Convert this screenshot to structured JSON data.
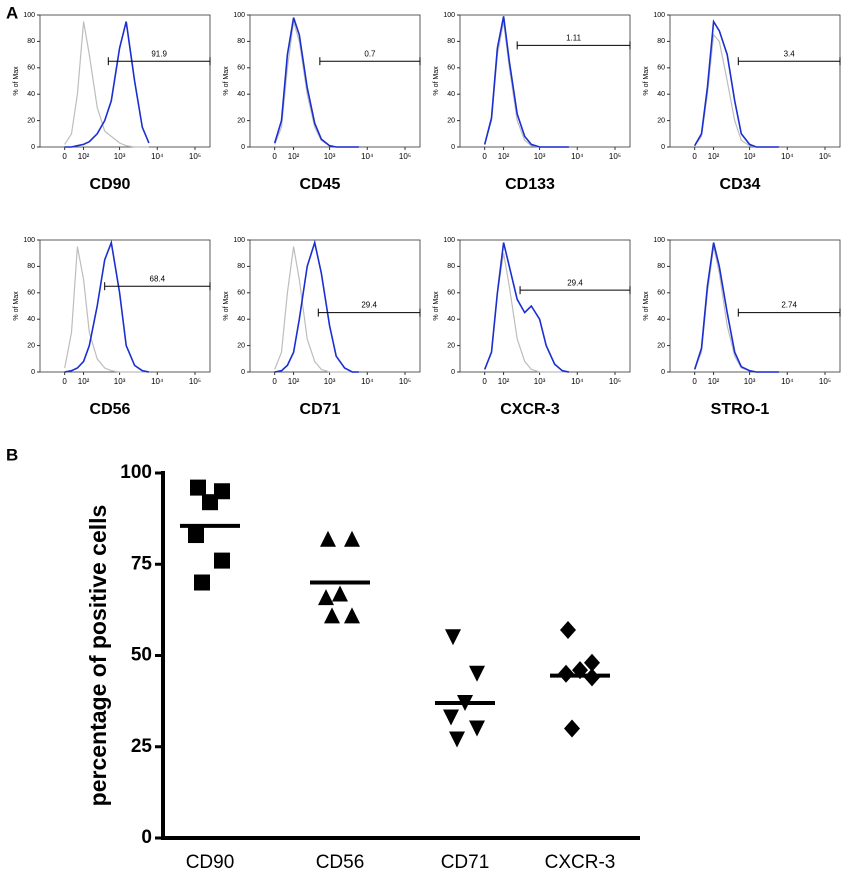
{
  "panels": [
    "A",
    "B"
  ],
  "chart_data": [
    {
      "type": "line",
      "title": "CD90",
      "ylabel": "% of Max",
      "xscale": "biexponential",
      "x": [
        0,
        30,
        60,
        100,
        150,
        250,
        400,
        600,
        1000,
        1500,
        2500,
        4000,
        6000
      ],
      "series": [
        {
          "color": "#bdbdbd",
          "values": [
            2,
            10,
            40,
            95,
            70,
            30,
            12,
            8,
            3,
            1,
            0,
            0,
            0
          ]
        },
        {
          "color": "#1a2fd0",
          "values": [
            0,
            0,
            1,
            2,
            4,
            10,
            20,
            35,
            75,
            95,
            50,
            15,
            3
          ]
        }
      ],
      "gate": {
        "x": [
          500,
          250000
        ],
        "y": 65,
        "label": 91.9
      },
      "xlim": [
        -150,
        250000
      ],
      "ylim": [
        0,
        100
      ],
      "xticks": [
        0,
        {
          "value": 100,
          "label": "10²"
        },
        {
          "value": 1000,
          "label": "10³"
        },
        {
          "value": 10000,
          "label": "10⁴"
        },
        {
          "value": 100000,
          "label": "10⁵"
        }
      ],
      "yticks": [
        0,
        20,
        40,
        60,
        80,
        100
      ]
    },
    {
      "type": "line",
      "title": "CD45",
      "ylabel": "% of Max",
      "xscale": "biexponential",
      "x": [
        0,
        30,
        60,
        100,
        150,
        250,
        400,
        600,
        1000,
        1500,
        2500,
        4000,
        6000
      ],
      "series": [
        {
          "color": "#bdbdbd",
          "values": [
            2,
            15,
            60,
            95,
            80,
            40,
            15,
            5,
            1,
            0,
            0,
            0,
            0
          ]
        },
        {
          "color": "#1a2fd0",
          "values": [
            3,
            20,
            70,
            98,
            85,
            45,
            18,
            6,
            1,
            0,
            0,
            0,
            0
          ]
        }
      ],
      "gate": {
        "x": [
          550,
          250000
        ],
        "y": 65,
        "label": 0.7
      },
      "xlim": [
        -150,
        250000
      ],
      "ylim": [
        0,
        100
      ],
      "xticks": [
        0,
        {
          "value": 100,
          "label": "10²"
        },
        {
          "value": 1000,
          "label": "10³"
        },
        {
          "value": 10000,
          "label": "10⁴"
        },
        {
          "value": 100000,
          "label": "10⁵"
        }
      ],
      "yticks": [
        0,
        20,
        40,
        60,
        80,
        100
      ]
    },
    {
      "type": "line",
      "title": "CD133",
      "ylabel": "% of Max",
      "xscale": "biexponential",
      "x": [
        0,
        30,
        60,
        100,
        150,
        250,
        400,
        600,
        1000,
        1500,
        2500,
        4000,
        6000
      ],
      "series": [
        {
          "color": "#bdbdbd",
          "values": [
            2,
            20,
            70,
            95,
            60,
            20,
            5,
            1,
            0,
            0,
            0,
            0,
            0
          ]
        },
        {
          "color": "#1a2fd0",
          "values": [
            2,
            22,
            75,
            99,
            65,
            25,
            8,
            2,
            0,
            0,
            0,
            0,
            0
          ]
        }
      ],
      "gate": {
        "x": [
          250,
          250000
        ],
        "y": 77,
        "label": 1.11
      },
      "xlim": [
        -150,
        250000
      ],
      "ylim": [
        0,
        100
      ],
      "xticks": [
        0,
        {
          "value": 100,
          "label": "10²"
        },
        {
          "value": 1000,
          "label": "10³"
        },
        {
          "value": 10000,
          "label": "10⁴"
        },
        {
          "value": 100000,
          "label": "10⁵"
        }
      ],
      "yticks": [
        0,
        20,
        40,
        60,
        80,
        100
      ]
    },
    {
      "type": "line",
      "title": "CD34",
      "ylabel": "% of Max",
      "xscale": "biexponential",
      "x": [
        0,
        30,
        60,
        100,
        150,
        250,
        400,
        600,
        1000,
        1500,
        2500,
        4000,
        6000
      ],
      "series": [
        {
          "color": "#bdbdbd",
          "values": [
            1,
            8,
            40,
            85,
            80,
            50,
            20,
            5,
            1,
            0,
            0,
            0,
            0
          ]
        },
        {
          "color": "#1a2fd0",
          "values": [
            1,
            10,
            45,
            95,
            88,
            70,
            35,
            10,
            2,
            0,
            0,
            0,
            0
          ]
        }
      ],
      "gate": {
        "x": [
          500,
          250000
        ],
        "y": 65,
        "label": 3.4
      },
      "xlim": [
        -150,
        250000
      ],
      "ylim": [
        0,
        100
      ],
      "xticks": [
        0,
        {
          "value": 100,
          "label": "10²"
        },
        {
          "value": 1000,
          "label": "10³"
        },
        {
          "value": 10000,
          "label": "10⁴"
        },
        {
          "value": 100000,
          "label": "10⁵"
        }
      ],
      "yticks": [
        0,
        20,
        40,
        60,
        80,
        100
      ]
    },
    {
      "type": "line",
      "title": "CD56",
      "ylabel": "% of Max",
      "xscale": "biexponential",
      "x": [
        0,
        30,
        60,
        100,
        150,
        250,
        400,
        600,
        1000,
        1500,
        2500,
        4000,
        6000
      ],
      "series": [
        {
          "color": "#bdbdbd",
          "values": [
            3,
            30,
            95,
            70,
            30,
            10,
            3,
            1,
            0,
            0,
            0,
            0,
            0
          ]
        },
        {
          "color": "#1a2fd0",
          "values": [
            0,
            1,
            3,
            8,
            20,
            50,
            85,
            98,
            60,
            20,
            5,
            1,
            0
          ]
        }
      ],
      "gate": {
        "x": [
          400,
          250000
        ],
        "y": 65,
        "label": 68.4
      },
      "xlim": [
        -150,
        250000
      ],
      "ylim": [
        0,
        100
      ],
      "xticks": [
        0,
        {
          "value": 100,
          "label": "10²"
        },
        {
          "value": 1000,
          "label": "10³"
        },
        {
          "value": 10000,
          "label": "10⁴"
        },
        {
          "value": 100000,
          "label": "10⁵"
        }
      ],
      "yticks": [
        0,
        20,
        40,
        60,
        80,
        100
      ]
    },
    {
      "type": "line",
      "title": "CD71",
      "ylabel": "% of Max",
      "xscale": "biexponential",
      "x": [
        0,
        30,
        60,
        100,
        150,
        250,
        400,
        600,
        1000,
        1500,
        2500,
        4000,
        6000
      ],
      "series": [
        {
          "color": "#bdbdbd",
          "values": [
            2,
            15,
            60,
            95,
            70,
            25,
            8,
            2,
            0,
            0,
            0,
            0,
            0
          ]
        },
        {
          "color": "#1a2fd0",
          "values": [
            0,
            1,
            5,
            15,
            40,
            80,
            98,
            75,
            35,
            12,
            3,
            0,
            0
          ]
        }
      ],
      "gate": {
        "x": [
          500,
          250000
        ],
        "y": 45,
        "label": 29.4
      },
      "xlim": [
        -150,
        250000
      ],
      "ylim": [
        0,
        100
      ],
      "xticks": [
        0,
        {
          "value": 100,
          "label": "10²"
        },
        {
          "value": 1000,
          "label": "10³"
        },
        {
          "value": 10000,
          "label": "10⁴"
        },
        {
          "value": 100000,
          "label": "10⁵"
        }
      ],
      "yticks": [
        0,
        20,
        40,
        60,
        80,
        100
      ]
    },
    {
      "type": "line",
      "title": "CXCR-3",
      "ylabel": "% of Max",
      "xscale": "biexponential",
      "x": [
        0,
        30,
        60,
        100,
        150,
        250,
        400,
        600,
        1000,
        1500,
        2500,
        4000,
        6000
      ],
      "series": [
        {
          "color": "#bdbdbd",
          "values": [
            2,
            15,
            60,
            90,
            65,
            25,
            8,
            2,
            0,
            0,
            0,
            0,
            0
          ]
        },
        {
          "color": "#1a2fd0",
          "values": [
            2,
            15,
            60,
            98,
            80,
            55,
            45,
            50,
            40,
            20,
            6,
            1,
            0
          ]
        }
      ],
      "gate": {
        "x": [
          300,
          250000
        ],
        "y": 62,
        "label": 29.4
      },
      "xlim": [
        -150,
        250000
      ],
      "ylim": [
        0,
        100
      ],
      "xticks": [
        0,
        {
          "value": 100,
          "label": "10²"
        },
        {
          "value": 1000,
          "label": "10³"
        },
        {
          "value": 10000,
          "label": "10⁴"
        },
        {
          "value": 100000,
          "label": "10⁵"
        }
      ],
      "yticks": [
        0,
        20,
        40,
        60,
        80,
        100
      ]
    },
    {
      "type": "line",
      "title": "STRO-1",
      "ylabel": "% of Max",
      "xscale": "biexponential",
      "x": [
        0,
        30,
        60,
        100,
        150,
        250,
        400,
        600,
        1000,
        1500,
        2500,
        4000,
        6000
      ],
      "series": [
        {
          "color": "#bdbdbd",
          "values": [
            2,
            15,
            60,
            95,
            75,
            35,
            12,
            3,
            1,
            0,
            0,
            0,
            0
          ]
        },
        {
          "color": "#1a2fd0",
          "values": [
            2,
            18,
            65,
            98,
            80,
            45,
            15,
            4,
            1,
            0,
            0,
            0,
            0
          ]
        }
      ],
      "gate": {
        "x": [
          500,
          250000
        ],
        "y": 45,
        "label": 2.74
      },
      "xlim": [
        -150,
        250000
      ],
      "ylim": [
        0,
        100
      ],
      "xticks": [
        0,
        {
          "value": 100,
          "label": "10²"
        },
        {
          "value": 1000,
          "label": "10³"
        },
        {
          "value": 10000,
          "label": "10⁴"
        },
        {
          "value": 100000,
          "label": "10⁵"
        }
      ],
      "yticks": [
        0,
        20,
        40,
        60,
        80,
        100
      ]
    },
    {
      "type": "dotplot",
      "ylabel": "percentage of positive cells",
      "categories": [
        "CD90",
        "CD56",
        "CD71",
        "CXCR-3"
      ],
      "markers": [
        "square",
        "triangle",
        "triangle-down",
        "diamond"
      ],
      "color": "#000000",
      "values": [
        [
          96,
          95,
          92,
          83,
          76,
          70
        ],
        [
          82,
          82,
          67,
          66,
          61,
          61
        ],
        [
          55,
          45,
          37,
          33,
          30,
          27
        ],
        [
          57,
          48,
          46,
          45,
          44,
          30
        ]
      ],
      "means": [
        85.5,
        70,
        37,
        44.5
      ],
      "ylim": [
        0,
        100
      ],
      "yticks": [
        0,
        25,
        50,
        75,
        100
      ]
    }
  ]
}
